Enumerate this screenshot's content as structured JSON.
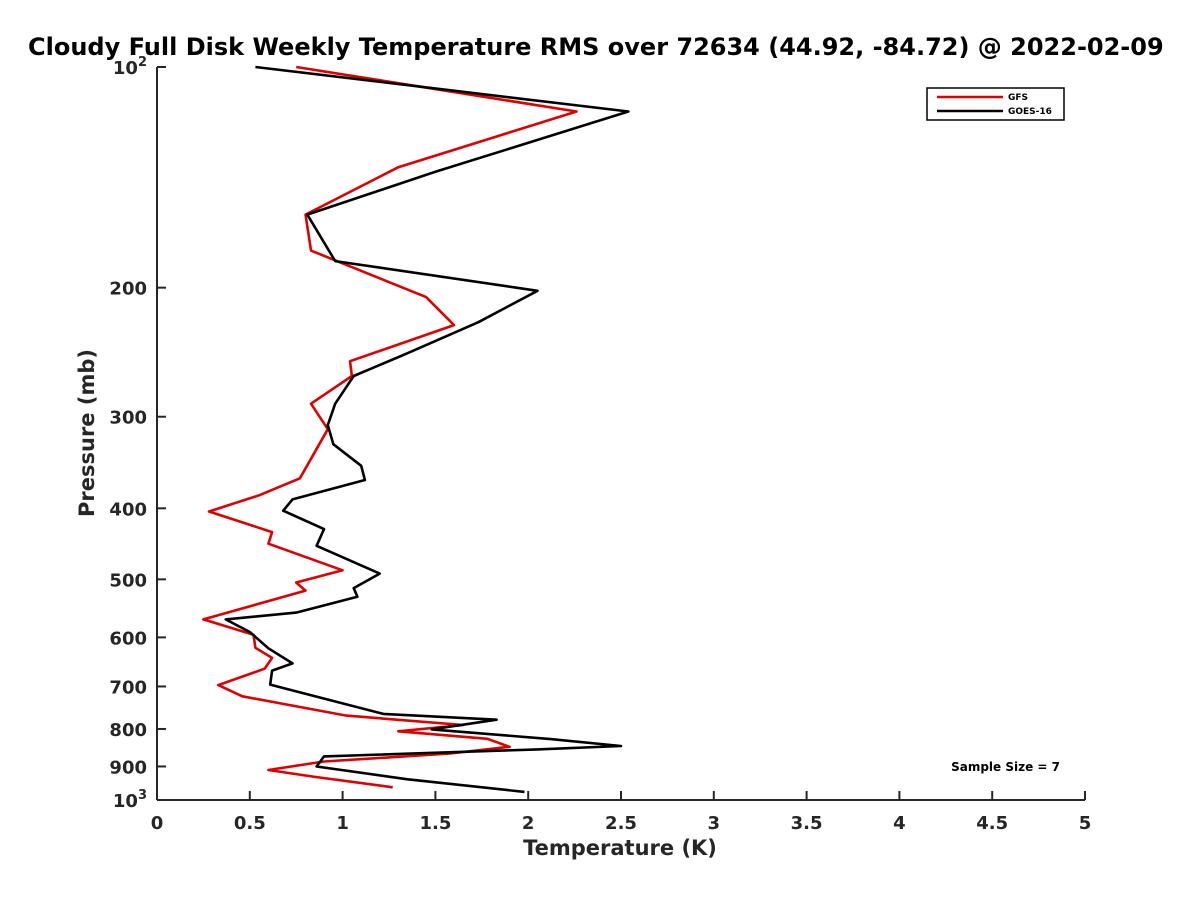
{
  "chart_data": {
    "type": "line",
    "title": "Cloudy Full Disk Weekly Temperature RMS over 72634 (44.92, -84.72) @ 2022-02-09",
    "xlabel": "Temperature (K)",
    "ylabel": "Pressure (mb)",
    "xlim": [
      0,
      5
    ],
    "ylim": [
      100,
      1000
    ],
    "yscale": "log",
    "y_reversed": true,
    "x_ticks": [
      0,
      0.5,
      1,
      1.5,
      2,
      2.5,
      3,
      3.5,
      4,
      4.5,
      5
    ],
    "x_tick_labels": [
      "0",
      "0.5",
      "1",
      "1.5",
      "2",
      "2.5",
      "3",
      "3.5",
      "4",
      "4.5",
      "5"
    ],
    "y_ticks": [
      100,
      200,
      300,
      400,
      500,
      600,
      700,
      800,
      900,
      1000
    ],
    "y_tick_labels": [
      {
        "base": "10",
        "exp": "2"
      },
      {
        "base": "200"
      },
      {
        "base": "300"
      },
      {
        "base": "400"
      },
      {
        "base": "500"
      },
      {
        "base": "600"
      },
      {
        "base": "700"
      },
      {
        "base": "800"
      },
      {
        "base": "900"
      },
      {
        "base": "10",
        "exp": "3"
      }
    ],
    "grid": false,
    "legend_position": "top-right",
    "annotation": "Sample Size = 7",
    "series": [
      {
        "name": "GFS",
        "color": "#e00000",
        "points": [
          [
            0.75,
            100
          ],
          [
            2.26,
            115
          ],
          [
            1.3,
            137
          ],
          [
            0.8,
            159
          ],
          [
            0.83,
            178
          ],
          [
            1.45,
            206
          ],
          [
            1.6,
            225
          ],
          [
            1.04,
            252
          ],
          [
            1.05,
            264
          ],
          [
            0.83,
            288
          ],
          [
            0.92,
            312
          ],
          [
            0.77,
            364
          ],
          [
            0.55,
            384
          ],
          [
            0.28,
            404
          ],
          [
            0.62,
            431
          ],
          [
            0.6,
            447
          ],
          [
            1.0,
            486
          ],
          [
            0.75,
            505
          ],
          [
            0.8,
            518
          ],
          [
            0.25,
            567
          ],
          [
            0.52,
            595
          ],
          [
            0.53,
            620
          ],
          [
            0.62,
            640
          ],
          [
            0.58,
            662
          ],
          [
            0.33,
            697
          ],
          [
            0.46,
            722
          ],
          [
            1.02,
            767
          ],
          [
            1.65,
            790
          ],
          [
            1.3,
            806
          ],
          [
            1.78,
            825
          ],
          [
            1.9,
            846
          ],
          [
            1.58,
            864
          ],
          [
            0.9,
            886
          ],
          [
            0.6,
            910
          ],
          [
            0.85,
            930
          ],
          [
            1.27,
            961
          ]
        ]
      },
      {
        "name": "GOES-16",
        "color": "#000000",
        "points": [
          [
            0.53,
            100
          ],
          [
            2.54,
            115
          ],
          [
            1.5,
            139
          ],
          [
            0.81,
            159
          ],
          [
            0.96,
            184
          ],
          [
            2.05,
            202
          ],
          [
            1.73,
            223
          ],
          [
            1.33,
            247
          ],
          [
            1.06,
            264
          ],
          [
            0.96,
            288
          ],
          [
            0.92,
            308
          ],
          [
            0.95,
            327
          ],
          [
            1.1,
            350
          ],
          [
            1.12,
            366
          ],
          [
            0.73,
            389
          ],
          [
            0.68,
            403
          ],
          [
            0.9,
            427
          ],
          [
            0.86,
            450
          ],
          [
            1.2,
            491
          ],
          [
            1.06,
            514
          ],
          [
            1.08,
            528
          ],
          [
            0.75,
            555
          ],
          [
            0.37,
            567
          ],
          [
            0.5,
            590
          ],
          [
            0.6,
            621
          ],
          [
            0.73,
            651
          ],
          [
            0.62,
            666
          ],
          [
            0.61,
            696
          ],
          [
            0.88,
            725
          ],
          [
            1.22,
            763
          ],
          [
            1.83,
            777
          ],
          [
            1.48,
            801
          ],
          [
            2.12,
            826
          ],
          [
            2.5,
            844
          ],
          [
            2.05,
            853
          ],
          [
            0.9,
            872
          ],
          [
            0.86,
            900
          ],
          [
            1.35,
            937
          ],
          [
            1.98,
            975
          ]
        ]
      }
    ]
  }
}
